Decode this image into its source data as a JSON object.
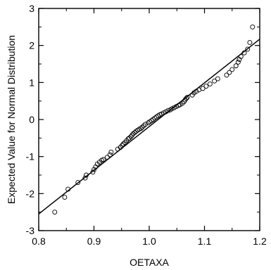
{
  "chart_data": {
    "type": "scatter",
    "xlabel": "OETAXA",
    "ylabel": "Expected Value for Normal Distribution",
    "xlim": [
      0.8,
      1.2
    ],
    "ylim": [
      -3,
      3
    ],
    "xticks": [
      0.8,
      0.9,
      1.0,
      1.1,
      1.2
    ],
    "xtick_labels": [
      "0.8",
      "0.9",
      "1.0",
      "1.1",
      "1.2"
    ],
    "yticks": [
      -3,
      -2,
      -1,
      0,
      1,
      2,
      3
    ],
    "ytick_labels": [
      "-3",
      "-2",
      "-1",
      "0",
      "1",
      "2",
      "3"
    ],
    "grid": false,
    "legend": "none",
    "reference_line": {
      "x": [
        0.8,
        1.2
      ],
      "y": [
        -2.55,
        2.17
      ]
    },
    "points": {
      "x": [
        0.829,
        0.847,
        0.853,
        0.871,
        0.884,
        0.886,
        0.898,
        0.9,
        0.903,
        0.906,
        0.91,
        0.914,
        0.917,
        0.924,
        0.929,
        0.931,
        0.943,
        0.948,
        0.951,
        0.953,
        0.956,
        0.959,
        0.962,
        0.964,
        0.967,
        0.969,
        0.971,
        0.974,
        0.976,
        0.979,
        0.982,
        0.985,
        0.987,
        0.99,
        0.993,
        0.998,
        1.001,
        1.004,
        1.007,
        1.01,
        1.013,
        1.016,
        1.019,
        1.022,
        1.026,
        1.03,
        1.034,
        1.038,
        1.041,
        1.045,
        1.049,
        1.053,
        1.056,
        1.06,
        1.063,
        1.065,
        1.067,
        1.069,
        1.078,
        1.081,
        1.085,
        1.09,
        1.097,
        1.103,
        1.11,
        1.118,
        1.124,
        1.14,
        1.145,
        1.15,
        1.157,
        1.161,
        1.163,
        1.166,
        1.172,
        1.178,
        1.182,
        1.187
      ],
      "y": [
        -2.5,
        -2.1,
        -1.88,
        -1.7,
        -1.58,
        -1.5,
        -1.42,
        -1.35,
        -1.28,
        -1.2,
        -1.15,
        -1.1,
        -1.08,
        -1.02,
        -0.95,
        -0.88,
        -0.8,
        -0.75,
        -0.7,
        -0.66,
        -0.62,
        -0.57,
        -0.52,
        -0.5,
        -0.46,
        -0.42,
        -0.38,
        -0.35,
        -0.32,
        -0.29,
        -0.26,
        -0.24,
        -0.21,
        -0.17,
        -0.13,
        -0.09,
        -0.06,
        -0.03,
        0.0,
        0.04,
        0.07,
        0.1,
        0.13,
        0.15,
        0.18,
        0.21,
        0.24,
        0.26,
        0.29,
        0.32,
        0.35,
        0.38,
        0.4,
        0.44,
        0.48,
        0.53,
        0.57,
        0.6,
        0.66,
        0.72,
        0.76,
        0.8,
        0.84,
        0.9,
        0.96,
        1.04,
        1.1,
        1.2,
        1.27,
        1.35,
        1.45,
        1.55,
        1.62,
        1.7,
        1.8,
        1.9,
        2.08,
        2.5
      ]
    }
  }
}
